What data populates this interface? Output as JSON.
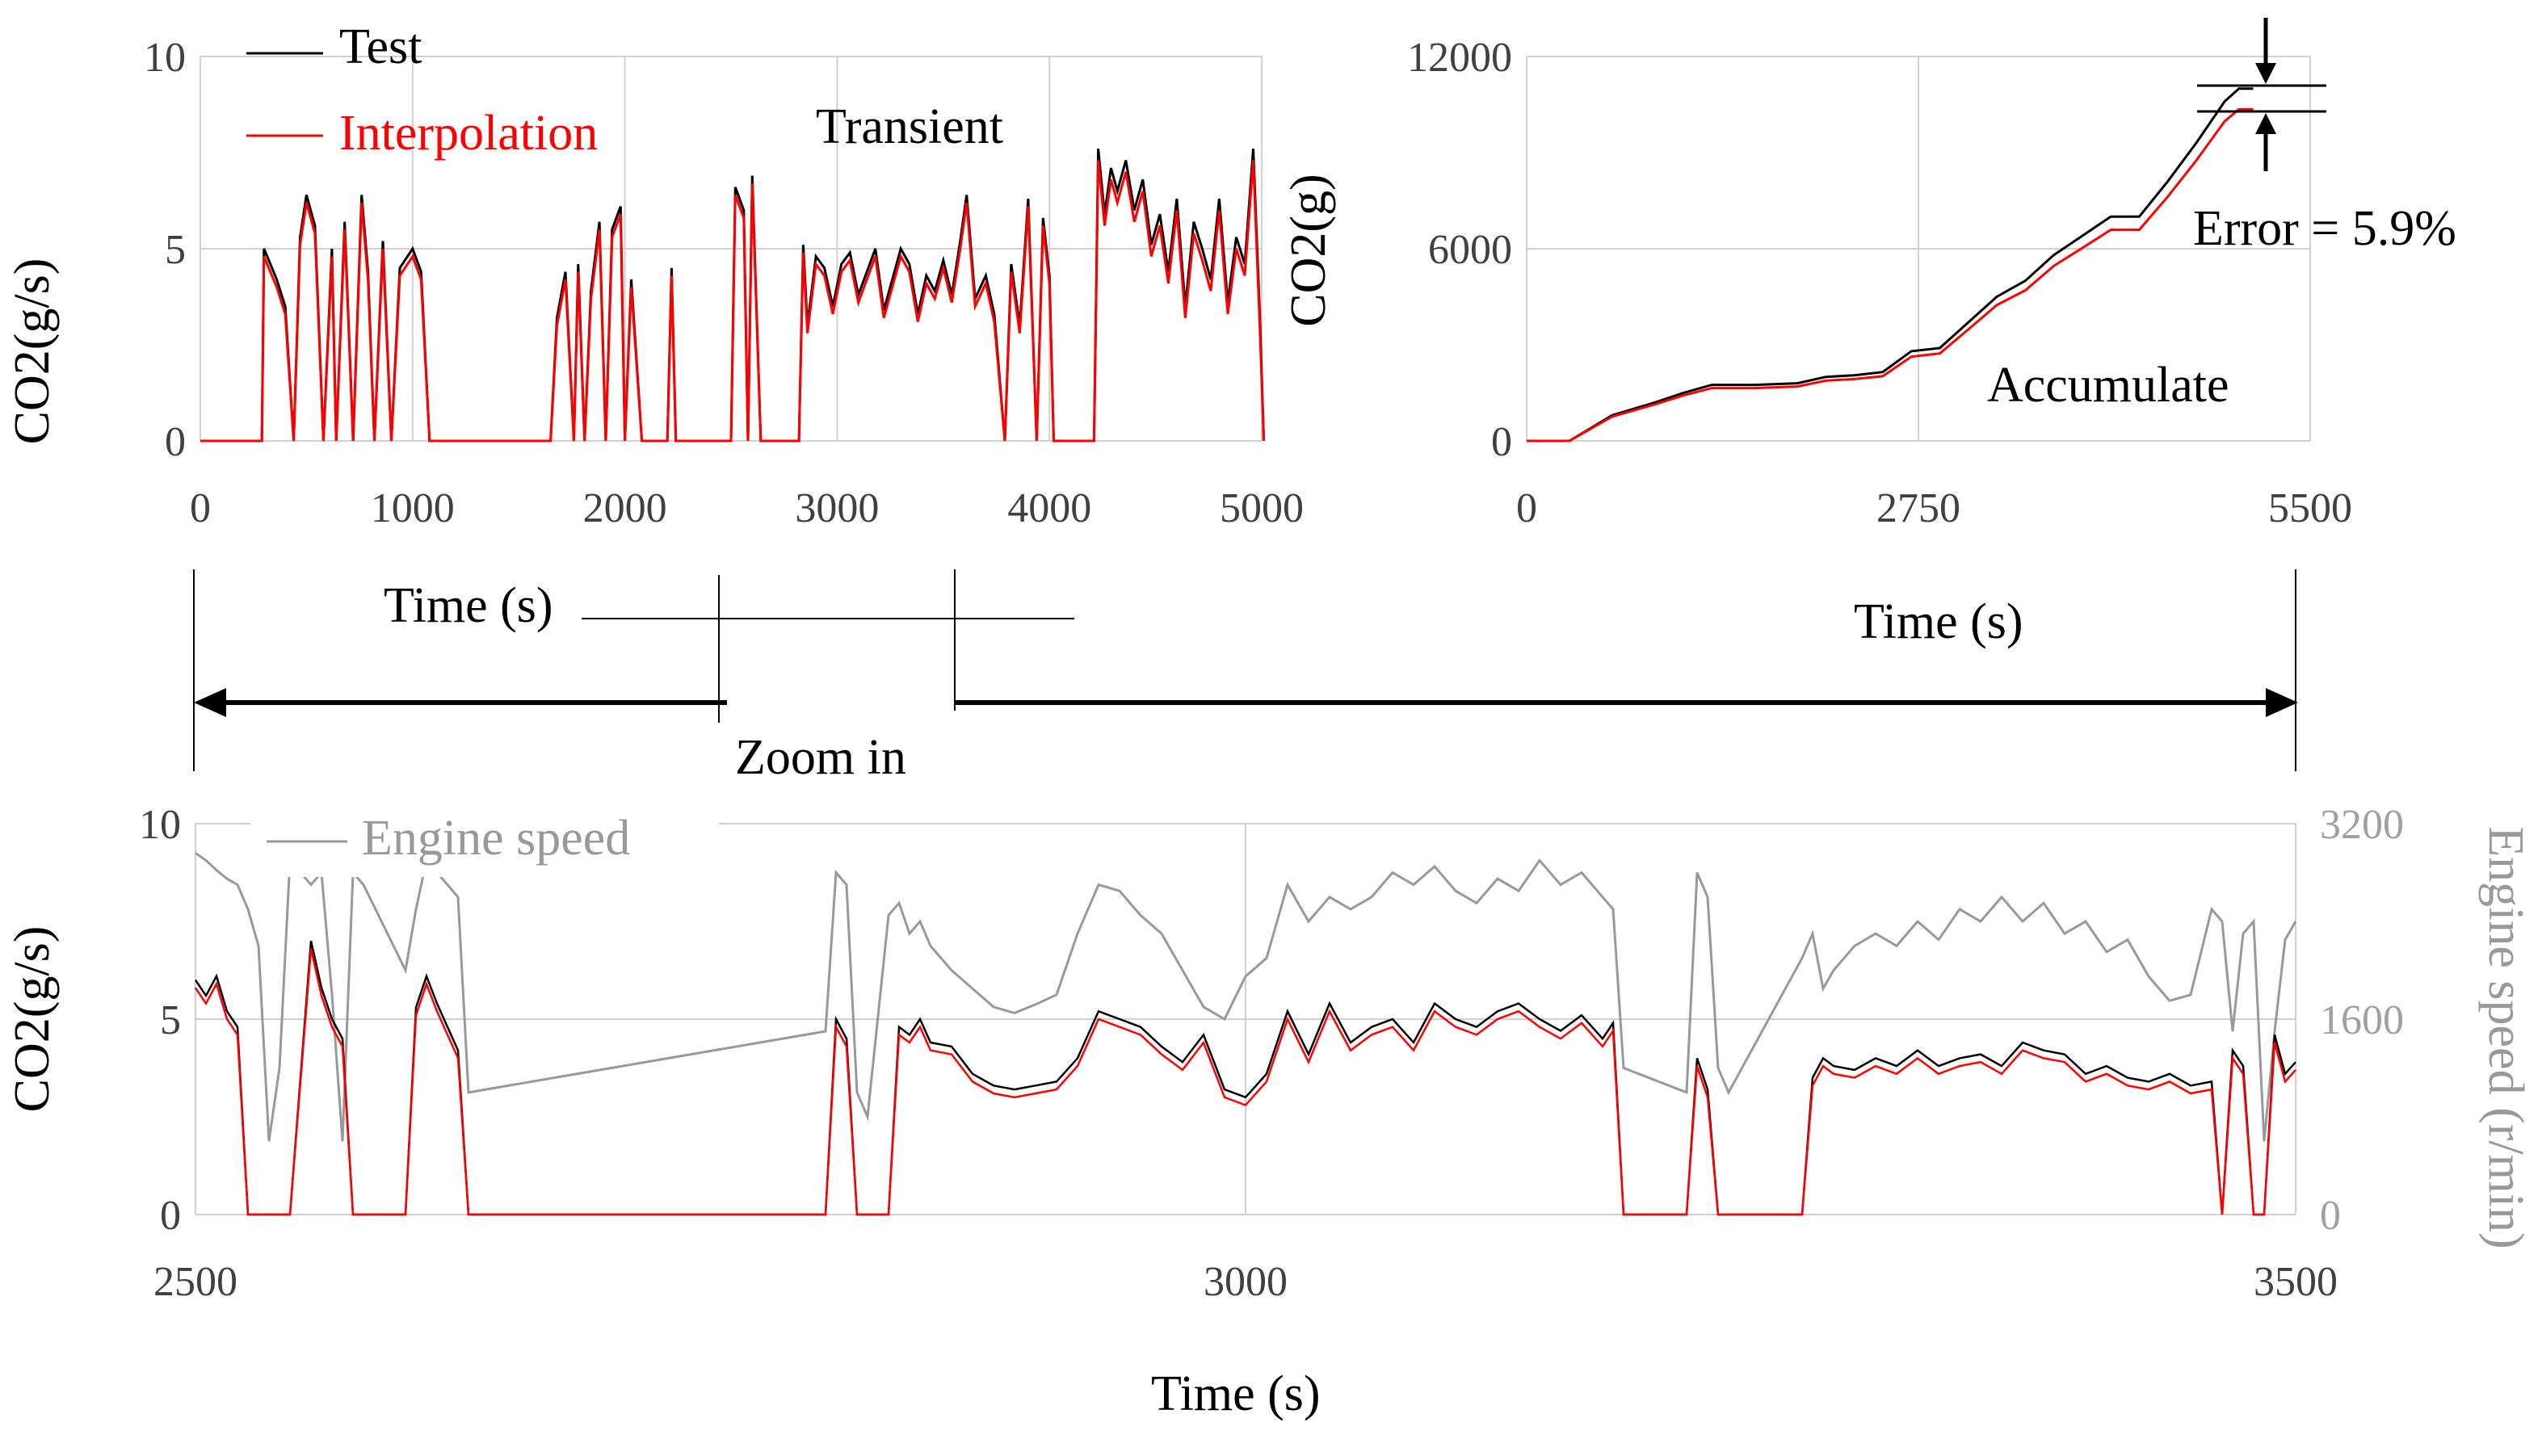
{
  "figure": {
    "zoom_label": "Zoom in"
  },
  "chart_data": [
    {
      "id": "transient",
      "type": "line",
      "annotation": "Transient",
      "xlabel": "Time (s)",
      "ylabel": "CO2(g/s)",
      "xlim": [
        0,
        5000
      ],
      "ylim": [
        0,
        10
      ],
      "xticks": [
        0,
        1000,
        2000,
        3000,
        4000,
        5000
      ],
      "yticks": [
        0,
        5,
        10
      ],
      "legend_position": "top-left",
      "series": [
        {
          "name": "Test",
          "color": "#000000"
        },
        {
          "name": "Interpolation",
          "color": "#ff0000"
        }
      ],
      "x": [
        0,
        290,
        300,
        330,
        360,
        400,
        440,
        470,
        500,
        540,
        580,
        620,
        640,
        680,
        720,
        760,
        790,
        820,
        860,
        900,
        940,
        1000,
        1040,
        1080,
        1110,
        1130,
        1650,
        1680,
        1720,
        1760,
        1780,
        1810,
        1840,
        1880,
        1910,
        1940,
        1980,
        2000,
        2030,
        2080,
        2200,
        2220,
        2240,
        2500,
        2520,
        2560,
        2580,
        2600,
        2640,
        2660,
        2820,
        2840,
        2860,
        2900,
        2940,
        2980,
        3020,
        3060,
        3100,
        3140,
        3180,
        3220,
        3260,
        3300,
        3340,
        3380,
        3420,
        3460,
        3500,
        3540,
        3580,
        3610,
        3650,
        3700,
        3740,
        3790,
        3820,
        3860,
        3900,
        3940,
        3970,
        4000,
        4020,
        4210,
        4230,
        4260,
        4290,
        4320,
        4360,
        4400,
        4440,
        4480,
        4520,
        4560,
        4600,
        4640,
        4680,
        4720,
        4760,
        4800,
        4840,
        4880,
        4920,
        4960,
        4990,
        5010
      ],
      "test": [
        0,
        0,
        5.0,
        4.6,
        4.2,
        3.5,
        0,
        5.3,
        6.4,
        5.6,
        0,
        5.0,
        0,
        5.7,
        0,
        6.4,
        4.4,
        0,
        5.2,
        0,
        4.5,
        5.0,
        4.4,
        0,
        0,
        0,
        0,
        3.2,
        4.4,
        0,
        4.6,
        0,
        3.9,
        5.7,
        0,
        5.5,
        6.1,
        0,
        4.2,
        0,
        0,
        4.5,
        0,
        0,
        6.6,
        6.0,
        0,
        6.9,
        0,
        0,
        0,
        5.1,
        3.0,
        4.8,
        4.5,
        3.5,
        4.6,
        4.9,
        3.8,
        4.4,
        5.0,
        3.4,
        4.2,
        5.0,
        4.6,
        3.3,
        4.3,
        3.9,
        4.7,
        3.8,
        5.2,
        6.4,
        3.7,
        4.3,
        3.3,
        0,
        4.6,
        3.0,
        6.3,
        0,
        5.8,
        4.3,
        0,
        0,
        7.6,
        5.9,
        7.1,
        6.5,
        7.3,
        6.0,
        6.8,
        5.1,
        5.9,
        4.4,
        6.3,
        3.5,
        5.7,
        5.0,
        4.2,
        6.3,
        3.6,
        5.3,
        4.6,
        7.6,
        3.4,
        0
      ],
      "interpolation": [
        0,
        0,
        4.8,
        4.4,
        4.0,
        3.3,
        0,
        5.1,
        6.2,
        5.4,
        0,
        4.8,
        0,
        5.5,
        0,
        6.2,
        4.2,
        0,
        5.0,
        0,
        4.3,
        4.8,
        4.2,
        0,
        0,
        0,
        0,
        3.0,
        4.2,
        0,
        4.4,
        0,
        3.7,
        5.5,
        0,
        5.3,
        5.9,
        0,
        4.0,
        0,
        0,
        4.3,
        0,
        0,
        6.4,
        5.8,
        0,
        6.7,
        0,
        0,
        0,
        4.9,
        2.8,
        4.6,
        4.3,
        3.3,
        4.4,
        4.7,
        3.6,
        4.2,
        4.8,
        3.2,
        4.0,
        4.8,
        4.4,
        3.1,
        4.1,
        3.7,
        4.5,
        3.6,
        5.0,
        6.2,
        3.5,
        4.1,
        3.1,
        0,
        4.4,
        2.8,
        6.1,
        0,
        5.6,
        4.1,
        0,
        0,
        7.3,
        5.6,
        6.8,
        6.2,
        7.0,
        5.7,
        6.5,
        4.8,
        5.6,
        4.1,
        6.0,
        3.2,
        5.4,
        4.7,
        3.9,
        6.0,
        3.3,
        5.0,
        4.3,
        7.3,
        3.1,
        0
      ]
    },
    {
      "id": "accumulate",
      "type": "line",
      "annotation": "Accumulate",
      "error_label": "Error = 5.9%",
      "error_percent": 5.9,
      "xlabel": "Time (s)",
      "ylabel": "CO2(g)",
      "xlim": [
        0,
        5500
      ],
      "ylim": [
        0,
        12000
      ],
      "xticks": [
        0,
        2750,
        5500
      ],
      "yticks": [
        0,
        6000,
        12000
      ],
      "series": [
        {
          "name": "Test",
          "color": "#000000"
        },
        {
          "name": "Interpolation",
          "color": "#ff0000"
        }
      ],
      "x": [
        0,
        300,
        600,
        900,
        1100,
        1300,
        1600,
        1900,
        2100,
        2300,
        2500,
        2700,
        2900,
        3100,
        3300,
        3500,
        3700,
        3900,
        4100,
        4300,
        4500,
        4700,
        4900,
        5000,
        5100
      ],
      "test": [
        0,
        0,
        800,
        1200,
        1500,
        1750,
        1750,
        1800,
        2000,
        2050,
        2150,
        2800,
        2900,
        3700,
        4500,
        5000,
        5800,
        6400,
        7000,
        7000,
        8100,
        9300,
        10600,
        11000,
        11000
      ],
      "interpolation": [
        0,
        0,
        760,
        1140,
        1420,
        1650,
        1650,
        1700,
        1880,
        1930,
        2020,
        2630,
        2730,
        3480,
        4240,
        4700,
        5460,
        6020,
        6590,
        6590,
        7620,
        8750,
        9980,
        10350,
        10350
      ]
    },
    {
      "id": "zoom",
      "type": "line",
      "xlabel": "Time (s)",
      "ylabel": "CO2(g/s)",
      "y2label": "Engine speed (r/min)",
      "xlim": [
        2500,
        3500
      ],
      "ylim": [
        0,
        10
      ],
      "y2lim": [
        0,
        3200
      ],
      "xticks": [
        2500,
        3000,
        3500
      ],
      "yticks": [
        0,
        5,
        10
      ],
      "y2ticks": [
        0,
        1600,
        3200
      ],
      "legend_position": "top-left",
      "series": [
        {
          "name": "Test",
          "color": "#000000"
        },
        {
          "name": "Interpolation",
          "color": "#ff0000"
        },
        {
          "name": "Engine speed",
          "color": "#999999"
        }
      ],
      "x": [
        2500,
        2505,
        2510,
        2515,
        2520,
        2525,
        2530,
        2535,
        2540,
        2545,
        2555,
        2560,
        2565,
        2570,
        2575,
        2580,
        2600,
        2605,
        2610,
        2615,
        2625,
        2630,
        2800,
        2805,
        2810,
        2815,
        2820,
        2830,
        2835,
        2840,
        2845,
        2850,
        2860,
        2870,
        2880,
        2890,
        2900,
        2910,
        2920,
        2930,
        2940,
        2950,
        2960,
        2970,
        2980,
        2990,
        3000,
        3010,
        3020,
        3030,
        3040,
        3050,
        3060,
        3070,
        3080,
        3090,
        3100,
        3110,
        3120,
        3130,
        3140,
        3150,
        3160,
        3170,
        3175,
        3180,
        3210,
        3215,
        3220,
        3225,
        3230,
        3265,
        3270,
        3275,
        3280,
        3290,
        3300,
        3310,
        3320,
        3330,
        3340,
        3350,
        3360,
        3370,
        3380,
        3390,
        3400,
        3410,
        3420,
        3430,
        3440,
        3450,
        3460,
        3465,
        3470,
        3475,
        3480,
        3485,
        3490,
        3495,
        3500
      ],
      "test": [
        6.0,
        5.6,
        6.1,
        5.2,
        4.8,
        0,
        0,
        0,
        0,
        0,
        7.0,
        5.8,
        5.0,
        4.5,
        0,
        0,
        0,
        5.3,
        6.1,
        5.4,
        4.2,
        0,
        0,
        5.0,
        4.5,
        0,
        0,
        0,
        4.8,
        4.6,
        5.0,
        4.4,
        4.3,
        3.6,
        3.3,
        3.2,
        3.3,
        3.4,
        4.0,
        5.2,
        5.0,
        4.8,
        4.3,
        3.9,
        4.6,
        3.2,
        3.0,
        3.6,
        5.2,
        4.1,
        5.4,
        4.4,
        4.8,
        5.0,
        4.4,
        5.4,
        5.0,
        4.8,
        5.2,
        5.4,
        5.0,
        4.7,
        5.1,
        4.5,
        4.9,
        0,
        0,
        4.0,
        3.2,
        0,
        0,
        0,
        3.5,
        4.0,
        3.8,
        3.7,
        4.0,
        3.8,
        4.2,
        3.8,
        4.0,
        4.1,
        3.8,
        4.4,
        4.2,
        4.1,
        3.6,
        3.8,
        3.5,
        3.4,
        3.6,
        3.3,
        3.4,
        0,
        4.2,
        3.8,
        0,
        0,
        4.6,
        3.6,
        3.9
      ],
      "interpolation": [
        5.8,
        5.4,
        5.9,
        5.0,
        4.6,
        0,
        0,
        0,
        0,
        0,
        6.8,
        5.6,
        4.8,
        4.3,
        0,
        0,
        0,
        5.1,
        5.9,
        5.2,
        4.0,
        0,
        0,
        4.8,
        4.3,
        0,
        0,
        0,
        4.6,
        4.4,
        4.8,
        4.2,
        4.1,
        3.4,
        3.1,
        3.0,
        3.1,
        3.2,
        3.8,
        5.0,
        4.8,
        4.6,
        4.1,
        3.7,
        4.4,
        3.0,
        2.8,
        3.4,
        5.0,
        3.9,
        5.2,
        4.2,
        4.6,
        4.8,
        4.2,
        5.2,
        4.8,
        4.6,
        5.0,
        5.2,
        4.8,
        4.5,
        4.9,
        4.3,
        4.7,
        0,
        0,
        3.8,
        3.0,
        0,
        0,
        0,
        3.3,
        3.8,
        3.6,
        3.5,
        3.8,
        3.6,
        4.0,
        3.6,
        3.8,
        3.9,
        3.6,
        4.2,
        4.0,
        3.9,
        3.4,
        3.6,
        3.3,
        3.2,
        3.4,
        3.1,
        3.2,
        0,
        4.0,
        3.6,
        0,
        0,
        4.4,
        3.4,
        3.7
      ],
      "engine_speed": [
        2960,
        2900,
        2820,
        2750,
        2700,
        2500,
        2200,
        600,
        1200,
        2900,
        2700,
        2800,
        1800,
        600,
        2800,
        2700,
        2000,
        2500,
        2900,
        2800,
        2600,
        1000,
        1500,
        2800,
        2700,
        1000,
        800,
        2450,
        2550,
        2300,
        2400,
        2200,
        2000,
        1850,
        1700,
        1650,
        1720,
        1800,
        2300,
        2700,
        2650,
        2450,
        2300,
        2000,
        1700,
        1600,
        1950,
        2100,
        2700,
        2400,
        2600,
        2500,
        2600,
        2800,
        2700,
        2850,
        2650,
        2550,
        2750,
        2650,
        2900,
        2700,
        2800,
        2600,
        2500,
        1200,
        1000,
        2800,
        2600,
        1200,
        1000,
        2100,
        2300,
        1850,
        2000,
        2200,
        2300,
        2200,
        2400,
        2250,
        2500,
        2400,
        2600,
        2400,
        2550,
        2300,
        2400,
        2150,
        2250,
        1950,
        1750,
        1800,
        2500,
        2400,
        1500,
        2300,
        2400,
        600,
        1500,
        2250,
        2400
      ]
    }
  ]
}
